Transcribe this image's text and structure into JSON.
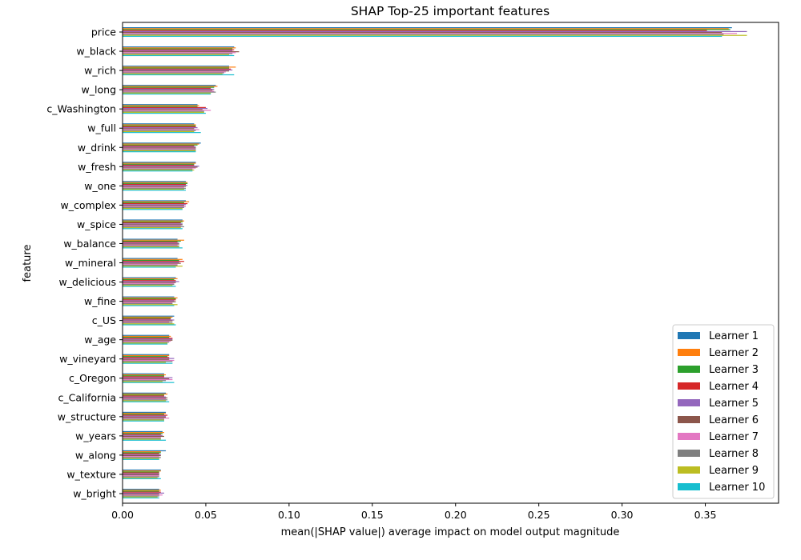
{
  "chart_data": {
    "type": "bar",
    "orientation": "horizontal",
    "title": "SHAP Top-25 important features",
    "xlabel": "mean(|SHAP value|) average impact on model output magnitude",
    "ylabel": "feature",
    "xlim": [
      0,
      0.394
    ],
    "xticks": [
      0.0,
      0.05,
      0.1,
      0.15,
      0.2,
      0.25,
      0.3,
      0.35
    ],
    "xtick_labels": [
      "0.00",
      "0.05",
      "0.10",
      "0.15",
      "0.20",
      "0.25",
      "0.30",
      "0.35"
    ],
    "grid": false,
    "legend_position": "bottom-right",
    "categories": [
      "price",
      "w_black",
      "w_rich",
      "w_long",
      "c_Washington",
      "w_full",
      "w_drink",
      "w_fresh",
      "w_one",
      "w_complex",
      "w_spice",
      "w_balance",
      "w_mineral",
      "w_delicious",
      "w_fine",
      "c_US",
      "w_age",
      "w_vineyard",
      "c_Oregon",
      "c_California",
      "w_structure",
      "w_years",
      "w_along",
      "w_texture",
      "w_bright"
    ],
    "series": [
      {
        "name": "Learner 1",
        "color": "#1f77b4",
        "values": [
          0.366,
          0.067,
          0.064,
          0.056,
          0.045,
          0.043,
          0.047,
          0.044,
          0.038,
          0.038,
          0.036,
          0.033,
          0.033,
          0.032,
          0.031,
          0.031,
          0.028,
          0.028,
          0.025,
          0.026,
          0.026,
          0.024,
          0.026,
          0.023,
          0.022
        ]
      },
      {
        "name": "Learner 2",
        "color": "#ff7f0e",
        "values": [
          0.364,
          0.068,
          0.068,
          0.057,
          0.046,
          0.044,
          0.046,
          0.044,
          0.039,
          0.04,
          0.037,
          0.037,
          0.036,
          0.033,
          0.033,
          0.03,
          0.029,
          0.028,
          0.026,
          0.027,
          0.026,
          0.025,
          0.023,
          0.023,
          0.023
        ]
      },
      {
        "name": "Learner 3",
        "color": "#2ca02c",
        "values": [
          0.365,
          0.066,
          0.064,
          0.055,
          0.045,
          0.044,
          0.045,
          0.043,
          0.039,
          0.037,
          0.036,
          0.035,
          0.034,
          0.031,
          0.032,
          0.029,
          0.028,
          0.027,
          0.025,
          0.025,
          0.025,
          0.024,
          0.023,
          0.022,
          0.022
        ]
      },
      {
        "name": "Learner 4",
        "color": "#d62728",
        "values": [
          0.351,
          0.067,
          0.065,
          0.053,
          0.05,
          0.044,
          0.043,
          0.043,
          0.038,
          0.039,
          0.035,
          0.033,
          0.037,
          0.032,
          0.032,
          0.029,
          0.03,
          0.028,
          0.025,
          0.025,
          0.027,
          0.023,
          0.022,
          0.022,
          0.023
        ]
      },
      {
        "name": "Learner 5",
        "color": "#9467bd",
        "values": [
          0.375,
          0.066,
          0.066,
          0.055,
          0.051,
          0.045,
          0.044,
          0.046,
          0.039,
          0.038,
          0.036,
          0.034,
          0.034,
          0.034,
          0.031,
          0.031,
          0.03,
          0.031,
          0.03,
          0.026,
          0.026,
          0.024,
          0.023,
          0.022,
          0.025
        ]
      },
      {
        "name": "Learner 6",
        "color": "#8c564b",
        "values": [
          0.36,
          0.07,
          0.064,
          0.054,
          0.048,
          0.043,
          0.044,
          0.045,
          0.038,
          0.037,
          0.036,
          0.034,
          0.035,
          0.032,
          0.032,
          0.03,
          0.03,
          0.028,
          0.028,
          0.027,
          0.026,
          0.025,
          0.023,
          0.022,
          0.022
        ]
      },
      {
        "name": "Learner 7",
        "color": "#e377c2",
        "values": [
          0.369,
          0.068,
          0.062,
          0.055,
          0.053,
          0.046,
          0.044,
          0.044,
          0.037,
          0.038,
          0.035,
          0.033,
          0.033,
          0.031,
          0.03,
          0.028,
          0.029,
          0.031,
          0.03,
          0.026,
          0.028,
          0.023,
          0.022,
          0.022,
          0.024
        ]
      },
      {
        "name": "Learner 8",
        "color": "#7f7f7f",
        "values": [
          0.361,
          0.066,
          0.061,
          0.056,
          0.049,
          0.044,
          0.044,
          0.042,
          0.038,
          0.037,
          0.037,
          0.034,
          0.033,
          0.031,
          0.03,
          0.03,
          0.028,
          0.03,
          0.026,
          0.027,
          0.025,
          0.023,
          0.023,
          0.022,
          0.022
        ]
      },
      {
        "name": "Learner 9",
        "color": "#bcbd22",
        "values": [
          0.375,
          0.064,
          0.06,
          0.053,
          0.049,
          0.043,
          0.044,
          0.043,
          0.037,
          0.036,
          0.035,
          0.034,
          0.036,
          0.03,
          0.033,
          0.031,
          0.027,
          0.026,
          0.024,
          0.026,
          0.025,
          0.023,
          0.022,
          0.021,
          0.021
        ]
      },
      {
        "name": "Learner 10",
        "color": "#17becf",
        "values": [
          0.36,
          0.067,
          0.067,
          0.053,
          0.05,
          0.047,
          0.044,
          0.042,
          0.038,
          0.036,
          0.036,
          0.036,
          0.032,
          0.032,
          0.031,
          0.032,
          0.027,
          0.03,
          0.031,
          0.028,
          0.025,
          0.026,
          0.022,
          0.023,
          0.022
        ]
      }
    ]
  }
}
